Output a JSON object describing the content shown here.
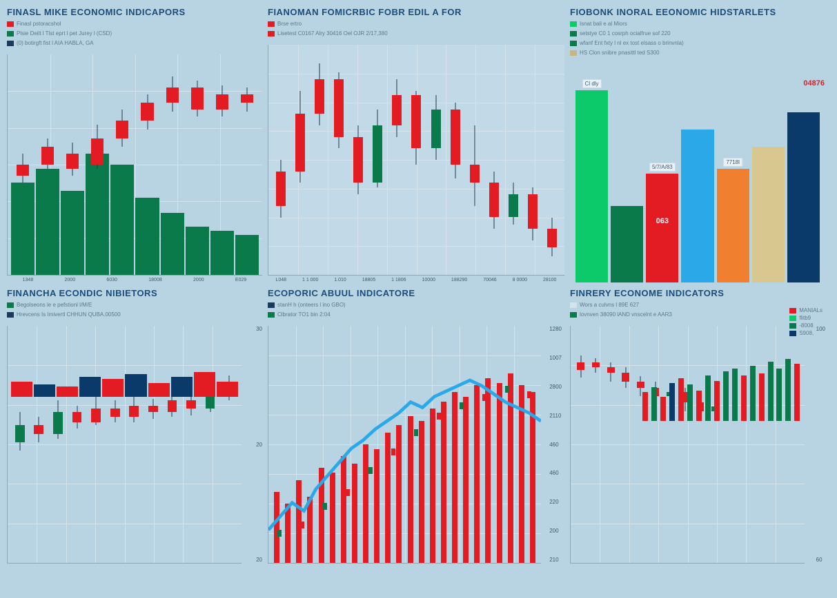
{
  "background_color": "#b8d4e3",
  "grid_color": "#d5e4ec",
  "axis_color": "#8aa8b8",
  "title_color": "#1a4d7a",
  "panel1": {
    "title": "FINASL MIKE ECONOMIC INDICAPORS",
    "legend": [
      {
        "color": "#e31b23",
        "text": "Finasl pstoracshol"
      },
      {
        "color": "#0a7a4a",
        "text": "Plsie Deilt l Tlst eprt l pet Jurey l (CSD)"
      },
      {
        "color": "#1a3a5a",
        "text": "(0) botirgft fist l AIA HABLA, GA"
      }
    ],
    "type": "candlestick_with_bars",
    "candles": [
      {
        "open": 45,
        "close": 50,
        "high": 55,
        "low": 42,
        "color": "#e31b23"
      },
      {
        "open": 50,
        "close": 58,
        "high": 62,
        "low": 48,
        "color": "#e31b23"
      },
      {
        "open": 55,
        "close": 48,
        "high": 60,
        "low": 45,
        "color": "#e31b23"
      },
      {
        "open": 50,
        "close": 62,
        "high": 68,
        "low": 48,
        "color": "#e31b23"
      },
      {
        "open": 62,
        "close": 70,
        "high": 75,
        "low": 58,
        "color": "#e31b23"
      },
      {
        "open": 70,
        "close": 78,
        "high": 82,
        "low": 66,
        "color": "#e31b23"
      },
      {
        "open": 78,
        "close": 85,
        "high": 90,
        "low": 74,
        "color": "#e31b23"
      },
      {
        "open": 85,
        "close": 75,
        "high": 88,
        "low": 72,
        "color": "#e31b23"
      },
      {
        "open": 75,
        "close": 82,
        "high": 86,
        "low": 72,
        "color": "#e31b23"
      },
      {
        "open": 82,
        "close": 78,
        "high": 85,
        "low": 74,
        "color": "#e31b23"
      }
    ],
    "bg_bars": [
      {
        "h": 42,
        "color": "#0a7a4a"
      },
      {
        "h": 48,
        "color": "#0a7a4a"
      },
      {
        "h": 38,
        "color": "#0a7a4a"
      },
      {
        "h": 55,
        "color": "#0a7a4a"
      },
      {
        "h": 50,
        "color": "#0a7a4a"
      },
      {
        "h": 35,
        "color": "#0a7a4a"
      },
      {
        "h": 28,
        "color": "#0a7a4a"
      },
      {
        "h": 22,
        "color": "#0a7a4a"
      },
      {
        "h": 20,
        "color": "#0a7a4a"
      },
      {
        "h": 18,
        "color": "#0a7a4a"
      }
    ],
    "xticks": [
      "1348",
      "2000",
      "6030",
      "18008",
      "2000",
      "E029"
    ]
  },
  "panel2": {
    "title": "FIANOMAN FOMICRBIC FOBR EDIL A FOR",
    "legend": [
      {
        "color": "#e31b23",
        "text": "Brse ertro"
      },
      {
        "color": "#e31b23",
        "text": "Lisetest C0167 Alry 30416 Oel OJR 2/17,380"
      }
    ],
    "type": "candlestick",
    "grid_rows": 8,
    "grid_cols": 10,
    "candles": [
      {
        "o": 30,
        "c": 45,
        "h": 50,
        "l": 25,
        "color": "#e31b23"
      },
      {
        "o": 45,
        "c": 70,
        "h": 80,
        "l": 40,
        "color": "#e31b23"
      },
      {
        "o": 70,
        "c": 85,
        "h": 92,
        "l": 65,
        "color": "#e31b23"
      },
      {
        "o": 85,
        "c": 60,
        "h": 88,
        "l": 55,
        "color": "#e31b23"
      },
      {
        "o": 60,
        "c": 40,
        "h": 65,
        "l": 35,
        "color": "#e31b23"
      },
      {
        "o": 40,
        "c": 65,
        "h": 72,
        "l": 38,
        "color": "#0a7a4a"
      },
      {
        "o": 65,
        "c": 78,
        "h": 85,
        "l": 60,
        "color": "#e31b23"
      },
      {
        "o": 78,
        "c": 55,
        "h": 80,
        "l": 48,
        "color": "#e31b23"
      },
      {
        "o": 55,
        "c": 72,
        "h": 78,
        "l": 50,
        "color": "#0a7a4a"
      },
      {
        "o": 72,
        "c": 48,
        "h": 75,
        "l": 42,
        "color": "#e31b23"
      },
      {
        "o": 48,
        "c": 40,
        "h": 65,
        "l": 30,
        "color": "#e31b23"
      },
      {
        "o": 40,
        "c": 25,
        "h": 45,
        "l": 20,
        "color": "#e31b23"
      },
      {
        "o": 25,
        "c": 35,
        "h": 40,
        "l": 22,
        "color": "#0a7a4a"
      },
      {
        "o": 35,
        "c": 20,
        "h": 38,
        "l": 15,
        "color": "#e31b23"
      },
      {
        "o": 20,
        "c": 12,
        "h": 25,
        "l": 8,
        "color": "#e31b23"
      }
    ],
    "xticks": [
      "L048",
      "1 1 000",
      "1.010",
      "18805",
      "1 1806",
      "10000",
      "188290",
      "70046",
      "8 0000",
      "28100"
    ]
  },
  "panel3": {
    "title": "FIOBONK INORAL EEONOMIC HIDSTARLETS",
    "legend": [
      {
        "color": "#0cc96a",
        "text": "Isnat bali e al Miors"
      },
      {
        "color": "#0a7a4a",
        "text": "setstye C0 1 cosrph ocialfrue sof 220"
      },
      {
        "color": "#0a7a4a",
        "text": "wfanf Ent fxty l nl ex tost elsass o brinvnla)"
      },
      {
        "color": "#c9b580",
        "text": "HS Clon snibre pnasittl ted S300"
      }
    ],
    "type": "bar",
    "bars": [
      {
        "h": 88,
        "color": "#0cc96a",
        "label": "Cl dly"
      },
      {
        "h": 35,
        "color": "#0a7a4a",
        "label": ""
      },
      {
        "h": 50,
        "color": "#e31b23",
        "label": "5/7/A/83",
        "value": "063"
      },
      {
        "h": 70,
        "color": "#2aa8e8",
        "label": ""
      },
      {
        "h": 52,
        "color": "#f08030",
        "label": "7718l"
      },
      {
        "h": 62,
        "color": "#d8c890",
        "label": ""
      },
      {
        "h": 78,
        "color": "#0a3a6a",
        "label": ""
      }
    ],
    "side_value": "04876",
    "side_value_color": "#e31b23"
  },
  "panel4": {
    "title": "FINANCHA ECONDIC NIBIETORS",
    "legend": [
      {
        "color": "#0a7a4a",
        "text": "Begolseons le e pefstionl l/M/E"
      },
      {
        "color": "#1a3a5a",
        "text": "Hrevcens Is Imivertl CHHUN QUBA.00500"
      }
    ],
    "type": "candlestick_with_bars",
    "yticks": [
      "30",
      "20",
      "20"
    ],
    "candles": [
      {
        "o": 30,
        "c": 40,
        "h": 48,
        "l": 25,
        "color": "#0a7a4a"
      },
      {
        "o": 40,
        "c": 35,
        "h": 45,
        "l": 30,
        "color": "#e31b23"
      },
      {
        "o": 35,
        "c": 48,
        "h": 55,
        "l": 32,
        "color": "#0a7a4a"
      },
      {
        "o": 48,
        "c": 42,
        "h": 52,
        "l": 38,
        "color": "#e31b23"
      },
      {
        "o": 42,
        "c": 50,
        "h": 58,
        "l": 40,
        "color": "#e31b23"
      },
      {
        "o": 50,
        "c": 45,
        "h": 55,
        "l": 42,
        "color": "#e31b23"
      },
      {
        "o": 45,
        "c": 52,
        "h": 60,
        "l": 42,
        "color": "#e31b23"
      },
      {
        "o": 52,
        "c": 48,
        "h": 56,
        "l": 44,
        "color": "#e31b23"
      },
      {
        "o": 48,
        "c": 55,
        "h": 62,
        "l": 45,
        "color": "#e31b23"
      },
      {
        "o": 55,
        "c": 50,
        "h": 60,
        "l": 46,
        "color": "#e31b23"
      },
      {
        "o": 50,
        "c": 58,
        "h": 65,
        "l": 48,
        "color": "#0a7a4a"
      },
      {
        "o": 58,
        "c": 62,
        "h": 70,
        "l": 55,
        "color": "#e31b23"
      }
    ],
    "bottom_bars": [
      {
        "h": 22,
        "color": "#e31b23"
      },
      {
        "h": 18,
        "color": "#0a3a6a"
      },
      {
        "h": 15,
        "color": "#e31b23"
      },
      {
        "h": 28,
        "color": "#0a3a6a"
      },
      {
        "h": 25,
        "color": "#e31b23"
      },
      {
        "h": 32,
        "color": "#0a3a6a"
      },
      {
        "h": 20,
        "color": "#e31b23"
      },
      {
        "h": 28,
        "color": "#0a3a6a"
      },
      {
        "h": 35,
        "color": "#e31b23"
      },
      {
        "h": 22,
        "color": "#e31b23"
      }
    ]
  },
  "panel5": {
    "title": "ECOPORIC ABUUL INDICATORE",
    "legend": [
      {
        "color": "#1a3a5a",
        "text": "stanH h (onteers l ino GBO)"
      },
      {
        "color": "#0a7a4a",
        "text": "Clbrator TO1 bin 2:04"
      }
    ],
    "type": "bar_with_line",
    "yticks": [
      "1280",
      "1007",
      "2800",
      "2110",
      "460",
      "460",
      "220",
      "200",
      "210"
    ],
    "bars": [
      {
        "h": 30,
        "color": "#e31b23"
      },
      {
        "h": 25,
        "color": "#e31b23"
      },
      {
        "h": 35,
        "color": "#e31b23"
      },
      {
        "h": 28,
        "color": "#e31b23"
      },
      {
        "h": 40,
        "color": "#e31b23"
      },
      {
        "h": 38,
        "color": "#e31b23"
      },
      {
        "h": 45,
        "color": "#e31b23"
      },
      {
        "h": 42,
        "color": "#e31b23"
      },
      {
        "h": 50,
        "color": "#e31b23"
      },
      {
        "h": 48,
        "color": "#e31b23"
      },
      {
        "h": 55,
        "color": "#e31b23"
      },
      {
        "h": 58,
        "color": "#e31b23"
      },
      {
        "h": 62,
        "color": "#e31b23"
      },
      {
        "h": 60,
        "color": "#e31b23"
      },
      {
        "h": 65,
        "color": "#e31b23"
      },
      {
        "h": 68,
        "color": "#e31b23"
      },
      {
        "h": 72,
        "color": "#e31b23"
      },
      {
        "h": 70,
        "color": "#e31b23"
      },
      {
        "h": 75,
        "color": "#e31b23"
      },
      {
        "h": 78,
        "color": "#e31b23"
      },
      {
        "h": 76,
        "color": "#e31b23"
      },
      {
        "h": 80,
        "color": "#e31b23"
      },
      {
        "h": 75,
        "color": "#e31b23"
      },
      {
        "h": 72,
        "color": "#e31b23"
      }
    ],
    "line_color": "#2aa8e8",
    "line_points": [
      25,
      30,
      35,
      32,
      40,
      45,
      50,
      55,
      58,
      62,
      65,
      68,
      72,
      70,
      74,
      76,
      78,
      80,
      78,
      75,
      72,
      70,
      68,
      65
    ],
    "candle_overlay": [
      {
        "p": 25,
        "c": "#0a7a4a"
      },
      {
        "p": 28,
        "c": "#e31b23"
      },
      {
        "p": 35,
        "c": "#0a7a4a"
      },
      {
        "p": 40,
        "c": "#e31b23"
      },
      {
        "p": 48,
        "c": "#0a7a4a"
      },
      {
        "p": 55,
        "c": "#e31b23"
      },
      {
        "p": 62,
        "c": "#0a7a4a"
      },
      {
        "p": 68,
        "c": "#e31b23"
      },
      {
        "p": 72,
        "c": "#0a7a4a"
      },
      {
        "p": 75,
        "c": "#e31b23"
      },
      {
        "p": 78,
        "c": "#0a7a4a"
      },
      {
        "p": 76,
        "c": "#e31b23"
      }
    ]
  },
  "panel6": {
    "title": "FINRERY ECONOME INDICATORS",
    "legend": [
      {
        "color": "#d5e4ec",
        "text": "Wors  a culvns l  89E  627"
      },
      {
        "color": "#0a7a4a",
        "text": "lovnven 38090 lAND vnscelnt e AAR3"
      }
    ],
    "right_legend": [
      {
        "color": "#e31b23",
        "text": "MANIALs"
      },
      {
        "color": "#0cc96a",
        "text": "flitb9"
      },
      {
        "color": "#0a7a4a",
        "text": "-8008"
      },
      {
        "color": "#0a3a6a",
        "text": "S908,"
      }
    ],
    "type": "mixed",
    "yticks": [
      "100",
      "60"
    ],
    "candles": [
      {
        "o": 70,
        "c": 75,
        "h": 80,
        "l": 65,
        "color": "#e31b23"
      },
      {
        "o": 75,
        "c": 72,
        "h": 78,
        "l": 68,
        "color": "#e31b23"
      },
      {
        "o": 72,
        "c": 68,
        "h": 75,
        "l": 62,
        "color": "#e31b23"
      },
      {
        "o": 68,
        "c": 62,
        "h": 72,
        "l": 58,
        "color": "#e31b23"
      },
      {
        "o": 62,
        "c": 58,
        "h": 66,
        "l": 52,
        "color": "#e31b23"
      },
      {
        "o": 58,
        "c": 52,
        "h": 62,
        "l": 48,
        "color": "#e31b23"
      },
      {
        "o": 52,
        "c": 55,
        "h": 60,
        "l": 48,
        "color": "#0a7a4a"
      },
      {
        "o": 55,
        "c": 48,
        "h": 58,
        "l": 42,
        "color": "#e31b23"
      },
      {
        "o": 48,
        "c": 42,
        "h": 52,
        "l": 38,
        "color": "#e31b23"
      },
      {
        "o": 42,
        "c": 45,
        "h": 50,
        "l": 38,
        "color": "#0a7a4a"
      }
    ],
    "bars": [
      {
        "h": 30,
        "color": "#e31b23"
      },
      {
        "h": 35,
        "color": "#0a7a4a"
      },
      {
        "h": 25,
        "color": "#e31b23"
      },
      {
        "h": 40,
        "color": "#0a3a6a"
      },
      {
        "h": 45,
        "color": "#e31b23"
      },
      {
        "h": 38,
        "color": "#0a7a4a"
      },
      {
        "h": 32,
        "color": "#e31b23"
      },
      {
        "h": 48,
        "color": "#0a7a4a"
      },
      {
        "h": 42,
        "color": "#e31b23"
      },
      {
        "h": 52,
        "color": "#0a7a4a"
      },
      {
        "h": 55,
        "color": "#0a7a4a"
      },
      {
        "h": 48,
        "color": "#e31b23"
      },
      {
        "h": 58,
        "color": "#0a7a4a"
      },
      {
        "h": 50,
        "color": "#e31b23"
      },
      {
        "h": 62,
        "color": "#0a7a4a"
      },
      {
        "h": 55,
        "color": "#0a7a4a"
      },
      {
        "h": 65,
        "color": "#0a7a4a"
      },
      {
        "h": 60,
        "color": "#e31b23"
      }
    ]
  }
}
